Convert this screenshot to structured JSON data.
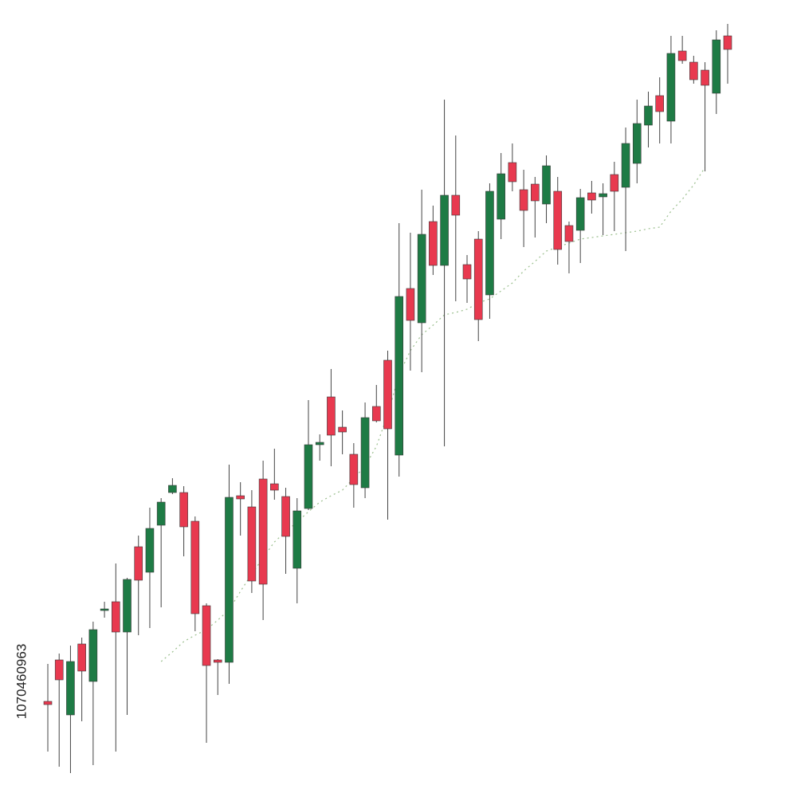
{
  "chart_data": {
    "type": "candlestick",
    "watermark_id": "1070460963",
    "ylim": [
      0,
      1000
    ],
    "up_color": "#1e7b45",
    "down_color": "#e8394f",
    "open": [
      120,
      172,
      103,
      192,
      145,
      234,
      245,
      207,
      314,
      282,
      341,
      382,
      382,
      346,
      240,
      172,
      169,
      378,
      364,
      399,
      393,
      377,
      287,
      362,
      442,
      502,
      464,
      430,
      388,
      490,
      548,
      429,
      638,
      595,
      722,
      667,
      755,
      668,
      700,
      630,
      725,
      796,
      762,
      769,
      744,
      760,
      717,
      711,
      758,
      753,
      781,
      765,
      795,
      843,
      880,
      848,
      936,
      922,
      912,
      883,
      955
    ],
    "high": [
      167,
      180,
      190,
      200,
      220,
      245,
      293,
      275,
      328,
      363,
      375,
      400,
      390,
      352,
      243,
      173,
      417,
      395,
      385,
      422,
      437,
      388,
      375,
      498,
      455,
      537,
      485,
      444,
      495,
      517,
      560,
      720,
      708,
      762,
      742,
      875,
      830,
      680,
      710,
      770,
      808,
      820,
      787,
      778,
      805,
      778,
      722,
      763,
      773,
      770,
      797,
      840,
      875,
      885,
      903,
      955,
      955,
      930,
      922,
      962,
      970
    ],
    "low": [
      57,
      38,
      30,
      95,
      40,
      225,
      57,
      103,
      203,
      212,
      238,
      380,
      302,
      208,
      68,
      128,
      142,
      328,
      256,
      222,
      373,
      280,
      243,
      360,
      422,
      415,
      430,
      363,
      375,
      470,
      348,
      402,
      535,
      533,
      655,
      440,
      622,
      620,
      572,
      600,
      700,
      760,
      690,
      702,
      720,
      668,
      657,
      670,
      732,
      705,
      710,
      685,
      770,
      815,
      820,
      820,
      920,
      895,
      785,
      857,
      895
    ],
    "close": [
      116,
      147,
      170,
      158,
      210,
      236,
      207,
      273,
      272,
      337,
      370,
      391,
      339,
      230,
      165,
      169,
      376,
      374,
      271,
      267,
      385,
      327,
      359,
      442,
      445,
      454,
      458,
      392,
      476,
      472,
      462,
      628,
      598,
      706,
      667,
      755,
      730,
      650,
      599,
      760,
      782,
      772,
      736,
      748,
      792,
      687,
      697,
      752,
      749,
      757,
      760,
      820,
      845,
      867,
      860,
      933,
      924,
      900,
      893,
      950,
      938
    ],
    "moving_average": {
      "color": "#9bbf8e",
      "values": [
        null,
        null,
        null,
        null,
        null,
        null,
        null,
        null,
        null,
        null,
        170,
        182,
        195,
        203,
        210,
        222,
        235,
        258,
        280,
        300,
        320,
        333,
        345,
        358,
        370,
        378,
        385,
        400,
        415,
        440,
        480,
        530,
        560,
        580,
        592,
        605,
        608,
        612,
        620,
        625,
        635,
        645,
        660,
        672,
        685,
        690,
        695,
        700,
        702,
        704,
        706,
        708,
        710,
        713,
        715,
        735,
        750,
        768,
        790,
        null,
        null
      ]
    }
  }
}
